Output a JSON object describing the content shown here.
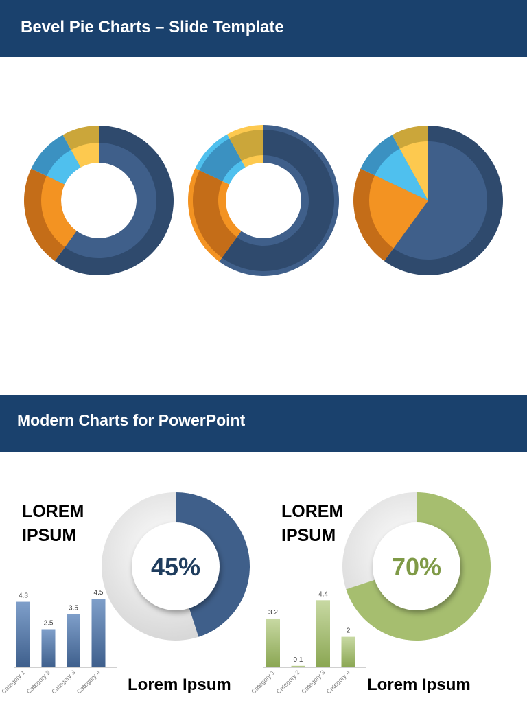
{
  "header": {
    "title": "Bevel Pie Charts – Slide Template"
  },
  "section2": {
    "title": "Modern Charts for PowerPoint"
  },
  "colors": {
    "banner": "#1a416d",
    "navy": "#2f4a6d",
    "navy_light": "#3f5f8a",
    "orange_dark": "#c46d18",
    "orange": "#f39322",
    "blue_dark": "#3b91c1",
    "blue": "#4fc0ee",
    "yellow_dark": "#cba63a",
    "yellow": "#fdc94f",
    "green": "#a6be6f",
    "grey": "#d9d9d9"
  },
  "chart_data": [
    {
      "type": "pie",
      "style": "bevel-doughnut",
      "values": [
        60,
        22,
        10,
        8
      ]
    },
    {
      "type": "pie",
      "style": "bevel-doughnut",
      "values": [
        60,
        22,
        10,
        8
      ]
    },
    {
      "type": "pie",
      "style": "bevel-pie",
      "values": [
        60,
        22,
        10,
        8
      ]
    },
    {
      "type": "pie",
      "style": "doughnut-percent",
      "heading": "LOREM IPSUM",
      "heading_lines": [
        "LOREM",
        "IPSUM"
      ],
      "percent_label": "45%",
      "values": [
        45,
        55
      ],
      "caption": "Lorem Ipsum",
      "color": "#3f5f8a"
    },
    {
      "type": "bar",
      "categories": [
        "Category 1",
        "Category 2",
        "Category 3",
        "Category 4"
      ],
      "values": [
        4.3,
        2.5,
        3.5,
        4.5
      ],
      "data_labels": [
        "4.3",
        "2.5",
        "3.5",
        "4.5"
      ],
      "ylim": [
        0,
        5
      ],
      "color": "#4f74a8"
    },
    {
      "type": "pie",
      "style": "doughnut-percent",
      "heading": "LOREM IPSUM",
      "heading_lines": [
        "LOREM",
        "IPSUM"
      ],
      "percent_label": "70%",
      "values": [
        70,
        30
      ],
      "caption": "Lorem Ipsum",
      "color": "#a6be6f"
    },
    {
      "type": "bar",
      "categories": [
        "Category 1",
        "Category 2",
        "Category 3",
        "Category 4"
      ],
      "values": [
        3.2,
        0.1,
        4.4,
        2
      ],
      "data_labels": [
        "3.2",
        "0.1",
        "4.4",
        "2"
      ],
      "ylim": [
        0,
        5
      ],
      "color": "#a6be6f"
    }
  ]
}
